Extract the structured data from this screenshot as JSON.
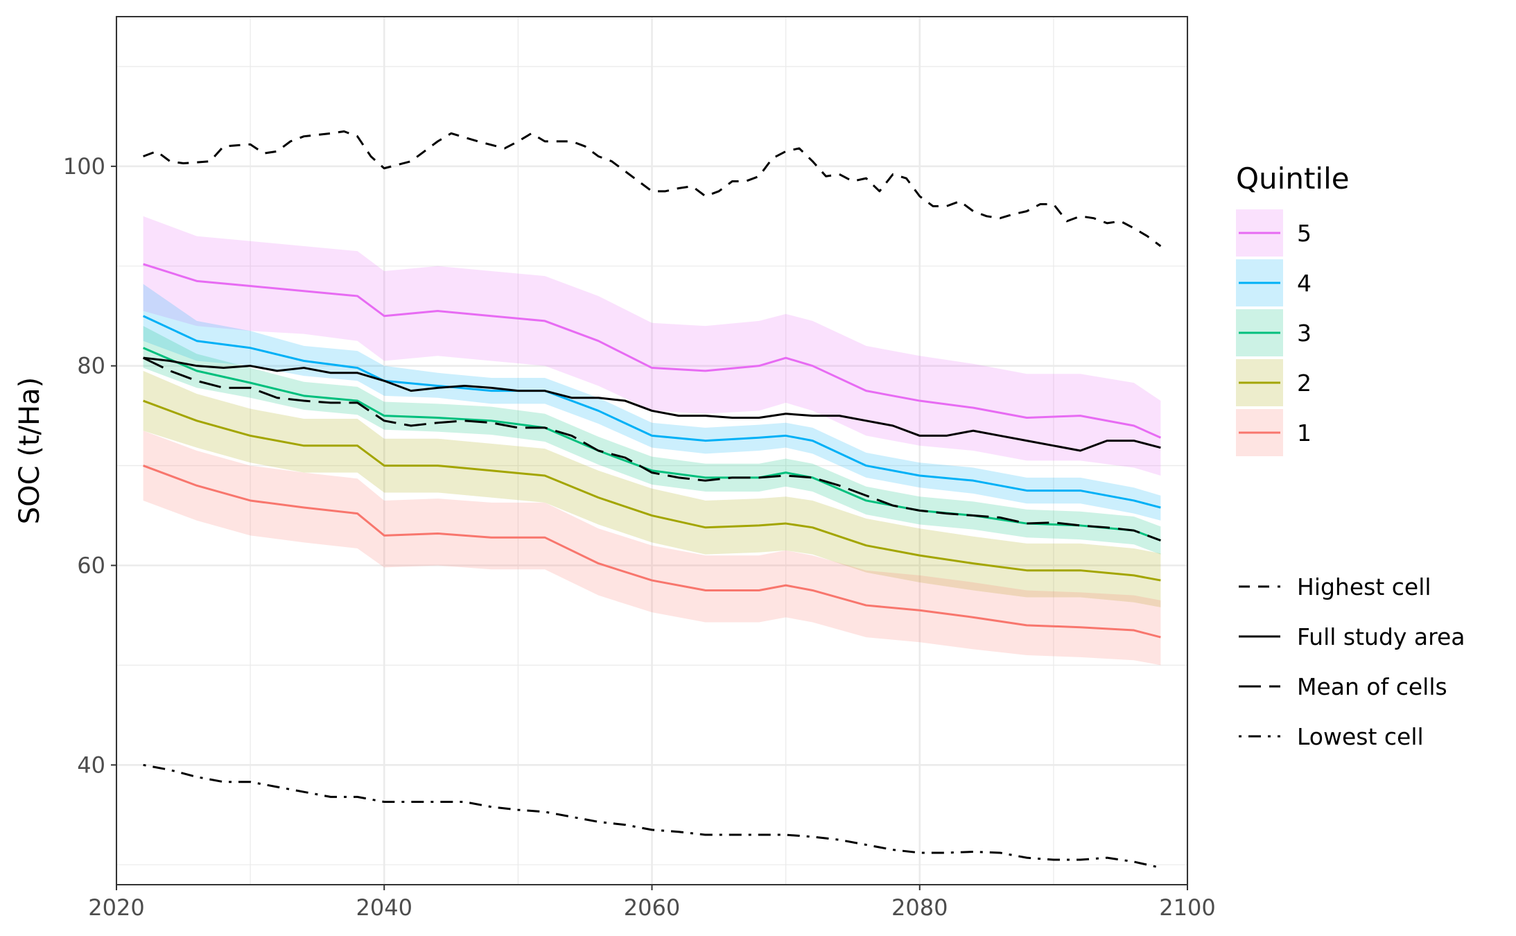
{
  "chart_data": {
    "type": "line",
    "title": "",
    "xlabel": "",
    "ylabel": "SOC (t/Ha)",
    "xlim": [
      2020,
      2100
    ],
    "ylim": [
      28,
      115
    ],
    "x_ticks": [
      2020,
      2040,
      2060,
      2080,
      2100
    ],
    "y_ticks": [
      40,
      60,
      80,
      100
    ],
    "grid": true,
    "legend_position": "right",
    "quintile_legend": {
      "title": "Quintile",
      "items": [
        {
          "label": "5",
          "color": "#e76bf3"
        },
        {
          "label": "4",
          "color": "#00b0f6"
        },
        {
          "label": "3",
          "color": "#00bf7d"
        },
        {
          "label": "2",
          "color": "#a3a500"
        },
        {
          "label": "1",
          "color": "#f8766d"
        }
      ]
    },
    "linetype_legend": {
      "items": [
        {
          "label": "Highest cell",
          "dash": "dashed"
        },
        {
          "label": "Full study area",
          "dash": "solid"
        },
        {
          "label": "Mean of cells",
          "dash": "longdash"
        },
        {
          "label": "Lowest cell",
          "dash": "dotdash"
        }
      ]
    },
    "quintiles": [
      {
        "name": "5",
        "color": "#e76bf3",
        "x": [
          2022,
          2026,
          2030,
          2034,
          2038,
          2040,
          2044,
          2048,
          2052,
          2056,
          2060,
          2064,
          2068,
          2070,
          2072,
          2076,
          2080,
          2084,
          2088,
          2092,
          2096,
          2098
        ],
        "y": [
          90.2,
          88.5,
          88.0,
          87.5,
          87.0,
          85.0,
          85.5,
          85.0,
          84.5,
          82.5,
          79.8,
          79.5,
          80.0,
          80.8,
          80.0,
          77.5,
          76.5,
          75.8,
          74.8,
          75.0,
          74.0,
          72.8
        ],
        "lo": [
          85.5,
          84.0,
          83.5,
          83.2,
          82.5,
          80.5,
          81.0,
          80.5,
          80.0,
          78.0,
          75.5,
          75.2,
          75.5,
          76.3,
          75.5,
          73.0,
          72.0,
          71.5,
          70.5,
          70.5,
          69.8,
          69.0
        ],
        "hi": [
          95.0,
          93.0,
          92.5,
          92.0,
          91.5,
          89.5,
          90.0,
          89.5,
          89.0,
          87.0,
          84.3,
          84.0,
          84.5,
          85.2,
          84.5,
          82.0,
          81.0,
          80.2,
          79.2,
          79.2,
          78.3,
          76.5
        ]
      },
      {
        "name": "4",
        "color": "#00b0f6",
        "x": [
          2022,
          2026,
          2030,
          2034,
          2038,
          2040,
          2044,
          2048,
          2052,
          2056,
          2060,
          2064,
          2068,
          2070,
          2072,
          2076,
          2080,
          2084,
          2088,
          2092,
          2096,
          2098
        ],
        "y": [
          85.0,
          82.5,
          81.8,
          80.5,
          79.8,
          78.5,
          78.0,
          77.5,
          77.5,
          75.5,
          73.0,
          72.5,
          72.8,
          73.0,
          72.5,
          70.0,
          69.0,
          68.5,
          67.5,
          67.5,
          66.5,
          65.8
        ],
        "lo": [
          82.5,
          80.5,
          80.0,
          79.0,
          78.5,
          77.0,
          76.8,
          76.2,
          76.2,
          74.2,
          71.8,
          71.2,
          71.5,
          71.8,
          71.2,
          68.8,
          67.8,
          67.2,
          66.2,
          66.2,
          65.2,
          64.5
        ],
        "hi": [
          88.2,
          84.5,
          83.5,
          82.0,
          81.5,
          80.0,
          79.3,
          78.8,
          78.8,
          76.8,
          74.3,
          73.8,
          74.1,
          74.3,
          73.8,
          71.3,
          70.3,
          69.8,
          68.8,
          68.8,
          67.8,
          67.0
        ]
      },
      {
        "name": "3",
        "color": "#00bf7d",
        "x": [
          2022,
          2026,
          2030,
          2034,
          2038,
          2040,
          2044,
          2048,
          2052,
          2056,
          2060,
          2064,
          2068,
          2070,
          2072,
          2076,
          2080,
          2084,
          2088,
          2092,
          2096,
          2098
        ],
        "y": [
          81.8,
          79.5,
          78.3,
          77.0,
          76.5,
          75.0,
          74.8,
          74.5,
          73.8,
          71.5,
          69.5,
          68.8,
          68.8,
          69.3,
          68.8,
          66.5,
          65.5,
          65.0,
          64.2,
          64.0,
          63.5,
          62.5
        ],
        "lo": [
          79.8,
          77.8,
          76.8,
          75.6,
          75.1,
          73.6,
          73.4,
          73.1,
          72.4,
          70.1,
          68.1,
          67.4,
          67.4,
          67.9,
          67.4,
          65.1,
          64.1,
          63.6,
          62.8,
          62.6,
          62.1,
          61.1
        ],
        "hi": [
          84.0,
          81.2,
          79.8,
          78.4,
          77.9,
          76.4,
          76.2,
          75.9,
          75.2,
          72.9,
          70.9,
          70.2,
          70.2,
          70.7,
          70.2,
          67.9,
          66.9,
          66.4,
          65.6,
          65.4,
          64.9,
          63.9
        ]
      },
      {
        "name": "2",
        "color": "#a3a500",
        "x": [
          2022,
          2026,
          2030,
          2034,
          2038,
          2040,
          2044,
          2048,
          2052,
          2056,
          2060,
          2064,
          2068,
          2070,
          2072,
          2076,
          2080,
          2084,
          2088,
          2092,
          2096,
          2098
        ],
        "y": [
          76.5,
          74.5,
          73.0,
          72.0,
          72.0,
          70.0,
          70.0,
          69.5,
          69.0,
          66.8,
          65.0,
          63.8,
          64.0,
          64.2,
          63.8,
          62.0,
          61.0,
          60.2,
          59.5,
          59.5,
          59.0,
          58.5
        ],
        "lo": [
          73.5,
          71.8,
          70.3,
          69.3,
          69.3,
          67.3,
          67.3,
          66.8,
          66.3,
          64.1,
          62.3,
          61.1,
          61.3,
          61.5,
          61.1,
          59.3,
          58.3,
          57.5,
          56.8,
          56.8,
          56.3,
          55.8
        ],
        "hi": [
          79.5,
          77.2,
          75.7,
          74.7,
          74.7,
          72.7,
          72.7,
          72.2,
          71.7,
          69.5,
          67.7,
          66.5,
          66.7,
          66.9,
          66.5,
          64.7,
          63.7,
          62.9,
          62.2,
          62.2,
          61.7,
          61.2
        ]
      },
      {
        "name": "1",
        "color": "#f8766d",
        "x": [
          2022,
          2026,
          2030,
          2034,
          2038,
          2040,
          2044,
          2048,
          2052,
          2056,
          2060,
          2064,
          2068,
          2070,
          2072,
          2076,
          2080,
          2084,
          2088,
          2092,
          2096,
          2098
        ],
        "y": [
          70.0,
          68.0,
          66.5,
          65.8,
          65.2,
          63.0,
          63.2,
          62.8,
          62.8,
          60.2,
          58.5,
          57.5,
          57.5,
          58.0,
          57.5,
          56.0,
          55.5,
          54.8,
          54.0,
          53.8,
          53.5,
          52.8
        ],
        "lo": [
          66.5,
          64.5,
          63.0,
          62.3,
          61.7,
          59.8,
          60.0,
          59.6,
          59.6,
          57.0,
          55.3,
          54.3,
          54.3,
          54.8,
          54.3,
          52.8,
          52.3,
          51.6,
          51.0,
          50.8,
          50.5,
          50.0
        ],
        "hi": [
          73.5,
          71.5,
          70.0,
          69.3,
          68.7,
          66.5,
          66.7,
          66.3,
          66.3,
          63.7,
          62.0,
          61.0,
          61.0,
          61.5,
          61.0,
          59.5,
          59.0,
          58.3,
          57.5,
          57.3,
          57.0,
          56.5
        ]
      }
    ],
    "reference_lines": [
      {
        "name": "Highest cell",
        "dash": "dashed",
        "x": [
          2022,
          2023,
          2024,
          2025,
          2027,
          2028,
          2030,
          2031,
          2032,
          2033,
          2034,
          2036,
          2037,
          2038,
          2039,
          2040,
          2042,
          2044,
          2045,
          2047,
          2049,
          2050,
          2051,
          2052,
          2053,
          2054,
          2055,
          2056,
          2057,
          2058,
          2059,
          2060,
          2061,
          2062,
          2063,
          2064,
          2065,
          2066,
          2067,
          2068,
          2069,
          2070,
          2071,
          2072,
          2073,
          2074,
          2075,
          2076,
          2077,
          2078,
          2079,
          2080,
          2081,
          2082,
          2083,
          2084,
          2085,
          2086,
          2087,
          2088,
          2089,
          2090,
          2091,
          2092,
          2093,
          2094,
          2095,
          2096,
          2097,
          2098
        ],
        "y": [
          101.0,
          101.5,
          100.5,
          100.3,
          100.5,
          102.0,
          102.2,
          101.3,
          101.5,
          102.5,
          103.0,
          103.3,
          103.5,
          103.0,
          101.0,
          99.8,
          100.5,
          102.5,
          103.3,
          102.5,
          101.8,
          102.5,
          103.3,
          102.5,
          102.5,
          102.5,
          102.0,
          101.0,
          100.5,
          99.5,
          98.5,
          97.5,
          97.5,
          97.8,
          98.0,
          97.0,
          97.5,
          98.5,
          98.5,
          99.0,
          100.8,
          101.5,
          101.8,
          100.5,
          99.0,
          99.2,
          98.5,
          98.8,
          97.5,
          99.2,
          98.8,
          97.0,
          96.0,
          96.0,
          96.5,
          95.5,
          95.0,
          94.8,
          95.2,
          95.5,
          96.2,
          96.2,
          94.5,
          95.0,
          94.8,
          94.3,
          94.5,
          93.8,
          93.0,
          92.0
        ]
      },
      {
        "name": "Full study area",
        "dash": "solid",
        "x": [
          2022,
          2024,
          2026,
          2028,
          2030,
          2032,
          2034,
          2036,
          2038,
          2040,
          2042,
          2044,
          2046,
          2048,
          2050,
          2052,
          2054,
          2056,
          2058,
          2060,
          2062,
          2064,
          2066,
          2068,
          2070,
          2072,
          2074,
          2076,
          2078,
          2080,
          2082,
          2084,
          2086,
          2088,
          2090,
          2092,
          2094,
          2096,
          2098
        ],
        "y": [
          80.8,
          80.5,
          80.0,
          79.8,
          80.0,
          79.5,
          79.8,
          79.3,
          79.3,
          78.5,
          77.5,
          77.8,
          78.0,
          77.8,
          77.5,
          77.5,
          76.8,
          76.8,
          76.5,
          75.5,
          75.0,
          75.0,
          74.8,
          74.8,
          75.2,
          75.0,
          75.0,
          74.5,
          74.0,
          73.0,
          73.0,
          73.5,
          73.0,
          72.5,
          72.0,
          71.5,
          72.5,
          72.5,
          71.8
        ]
      },
      {
        "name": "Mean of cells",
        "dash": "longdash",
        "x": [
          2022,
          2024,
          2026,
          2028,
          2030,
          2032,
          2034,
          2036,
          2038,
          2040,
          2042,
          2044,
          2046,
          2048,
          2050,
          2052,
          2054,
          2056,
          2058,
          2060,
          2062,
          2064,
          2066,
          2068,
          2070,
          2072,
          2074,
          2076,
          2078,
          2080,
          2082,
          2084,
          2086,
          2088,
          2090,
          2092,
          2094,
          2096,
          2098
        ],
        "y": [
          80.8,
          79.5,
          78.5,
          77.8,
          77.8,
          76.8,
          76.5,
          76.3,
          76.3,
          74.5,
          74.0,
          74.3,
          74.5,
          74.3,
          73.8,
          73.8,
          73.0,
          71.5,
          70.8,
          69.3,
          68.8,
          68.5,
          68.8,
          68.8,
          69.0,
          68.8,
          68.0,
          67.0,
          66.0,
          65.5,
          65.2,
          65.0,
          64.8,
          64.2,
          64.3,
          64.0,
          63.8,
          63.5,
          62.5
        ]
      },
      {
        "name": "Lowest cell",
        "dash": "dotdash",
        "x": [
          2022,
          2024,
          2026,
          2028,
          2030,
          2032,
          2034,
          2036,
          2038,
          2040,
          2042,
          2044,
          2046,
          2048,
          2050,
          2052,
          2054,
          2056,
          2058,
          2060,
          2062,
          2064,
          2066,
          2068,
          2070,
          2072,
          2074,
          2076,
          2078,
          2080,
          2082,
          2084,
          2086,
          2088,
          2090,
          2092,
          2094,
          2096,
          2098
        ],
        "y": [
          40.0,
          39.5,
          38.8,
          38.3,
          38.3,
          37.8,
          37.3,
          36.8,
          36.8,
          36.3,
          36.3,
          36.3,
          36.3,
          35.8,
          35.5,
          35.3,
          34.8,
          34.3,
          34.0,
          33.5,
          33.3,
          33.0,
          33.0,
          33.0,
          33.0,
          32.8,
          32.5,
          32.0,
          31.5,
          31.2,
          31.2,
          31.3,
          31.2,
          30.7,
          30.5,
          30.5,
          30.7,
          30.3,
          29.7
        ]
      }
    ]
  }
}
